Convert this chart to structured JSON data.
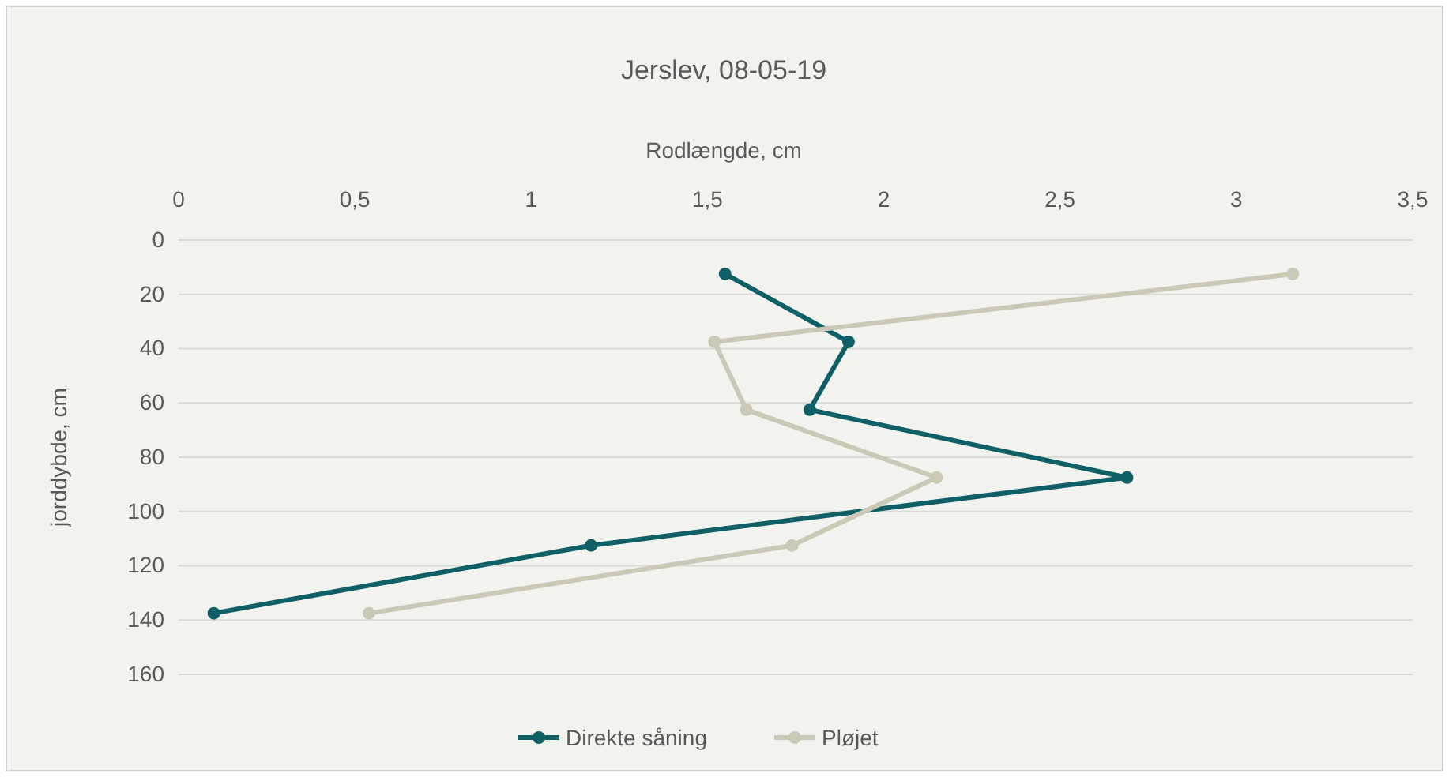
{
  "chart_data": {
    "type": "line",
    "title": "Jerslev, 08-05-19",
    "xlabel": "Rodlængde, cm",
    "ylabel": "jorddybde, cm",
    "xlim": [
      0,
      3.5
    ],
    "xticks": [
      0,
      {
        "value": 0.5,
        "label": "0,5"
      },
      1,
      {
        "value": 1.5,
        "label": "1,5"
      },
      2,
      {
        "value": 2.5,
        "label": "2,5"
      },
      3,
      {
        "value": 3.5,
        "label": "3,5"
      }
    ],
    "ylim": [
      160,
      0
    ],
    "yticks": [
      0,
      20,
      40,
      60,
      80,
      100,
      120,
      140,
      160
    ],
    "grid": "y",
    "legend": "bottom",
    "marker": "circle",
    "line_style": "solid",
    "series": [
      {
        "name": "Direkte såning",
        "color": "#0e5f66",
        "x": [
          1.55,
          1.9,
          1.79,
          2.69,
          1.17,
          0.1
        ],
        "values": [
          12.5,
          37.5,
          62.5,
          87.5,
          112.5,
          137.5
        ]
      },
      {
        "name": "Pløjet",
        "color": "#cbc8b5",
        "x": [
          3.16,
          1.52,
          1.61,
          2.15,
          1.74,
          0.54
        ],
        "values": [
          12.5,
          37.5,
          62.5,
          87.5,
          112.5,
          137.5
        ]
      }
    ]
  }
}
